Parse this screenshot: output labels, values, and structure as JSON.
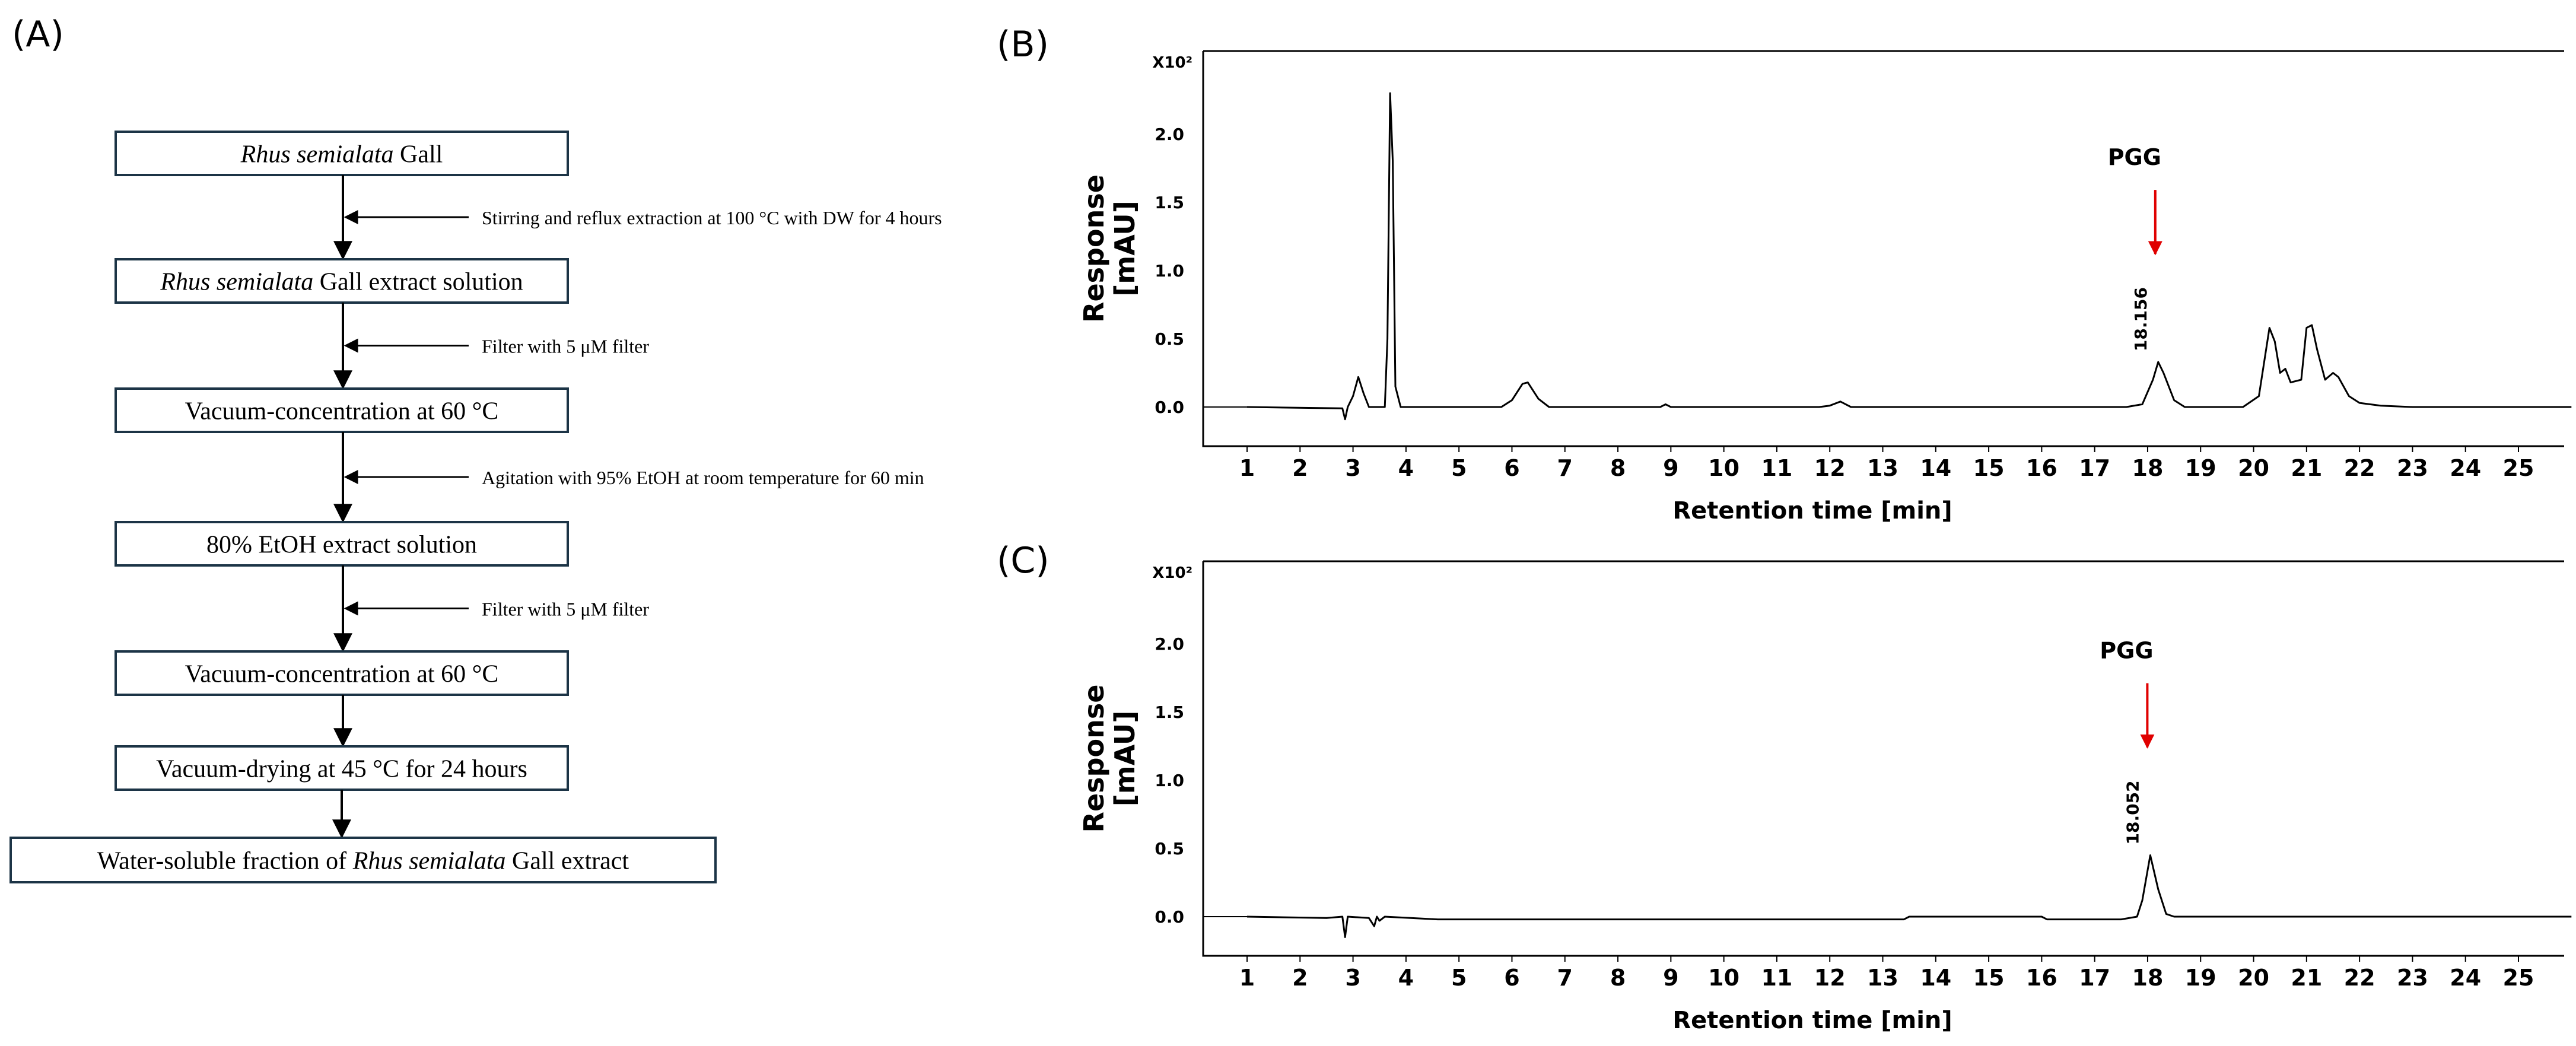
{
  "flowchart": {
    "panel_label": "(A)",
    "steps": [
      {
        "italic": "Rhus semialata",
        "text": " Gall"
      },
      {
        "italic": "Rhus semialata",
        "text": " Gall extract solution"
      },
      {
        "italic": "",
        "text": "Vacuum-concentration at 60 °C"
      },
      {
        "italic": "",
        "text": "80% EtOH extract solution"
      },
      {
        "italic": "",
        "text": "Vacuum-concentration at 60 °C"
      },
      {
        "italic": "",
        "text": "Vacuum-drying at 45 °C for 24 hours"
      },
      {
        "prefix": "Water-soluble fraction of ",
        "italic": "Rhus semialata",
        "text": " Gall extract"
      }
    ],
    "side_inputs": [
      {
        "after_step": 0,
        "text": "Stirring and reflux extraction at 100 °C with DW for 4 hours"
      },
      {
        "after_step": 1,
        "text": "Filter with 5 μM filter"
      },
      {
        "after_step": 2,
        "text": "Agitation with 95% EtOH at room temperature for 60 min"
      },
      {
        "after_step": 3,
        "text": "Filter with 5 μM filter"
      }
    ]
  },
  "chart_data": [
    {
      "panel_label": "(B)",
      "type": "line",
      "xlabel": "Retention time [min]",
      "ylabel_line1": "Response",
      "ylabel_line2": "[mAU]",
      "y_multiplier": "X10²",
      "xlim": [
        0.2,
        26.0
      ],
      "ylim": [
        -0.28,
        2.65
      ],
      "xticks": [
        1,
        2,
        3,
        4,
        5,
        6,
        7,
        8,
        9,
        10,
        11,
        12,
        13,
        14,
        15,
        16,
        17,
        18,
        19,
        20,
        21,
        22,
        23,
        24,
        25
      ],
      "yticks": [
        "0.0",
        "0.5",
        "1.0",
        "1.5",
        "2.0"
      ],
      "series": [
        {
          "color": "#000000",
          "points": [
            [
              1.0,
              0.0
            ],
            [
              2.8,
              -0.01
            ],
            [
              2.85,
              -0.09
            ],
            [
              2.9,
              0.0
            ],
            [
              3.0,
              0.08
            ],
            [
              3.1,
              0.22
            ],
            [
              3.2,
              0.1
            ],
            [
              3.3,
              0.0
            ],
            [
              3.6,
              0.0
            ],
            [
              3.65,
              0.5
            ],
            [
              3.7,
              2.3
            ],
            [
              3.75,
              1.8
            ],
            [
              3.8,
              0.15
            ],
            [
              3.9,
              0.0
            ],
            [
              5.8,
              0.0
            ],
            [
              6.0,
              0.05
            ],
            [
              6.2,
              0.17
            ],
            [
              6.3,
              0.18
            ],
            [
              6.5,
              0.06
            ],
            [
              6.7,
              0.0
            ],
            [
              8.8,
              0.0
            ],
            [
              8.9,
              0.02
            ],
            [
              9.0,
              0.0
            ],
            [
              11.8,
              0.0
            ],
            [
              12.0,
              0.01
            ],
            [
              12.2,
              0.04
            ],
            [
              12.4,
              0.0
            ],
            [
              17.6,
              0.0
            ],
            [
              17.9,
              0.02
            ],
            [
              18.1,
              0.2
            ],
            [
              18.2,
              0.33
            ],
            [
              18.3,
              0.25
            ],
            [
              18.5,
              0.05
            ],
            [
              18.7,
              0.0
            ],
            [
              19.8,
              0.0
            ],
            [
              20.1,
              0.08
            ],
            [
              20.3,
              0.58
            ],
            [
              20.4,
              0.48
            ],
            [
              20.5,
              0.25
            ],
            [
              20.6,
              0.28
            ],
            [
              20.7,
              0.18
            ],
            [
              20.9,
              0.2
            ],
            [
              21.0,
              0.58
            ],
            [
              21.1,
              0.6
            ],
            [
              21.2,
              0.42
            ],
            [
              21.35,
              0.2
            ],
            [
              21.5,
              0.25
            ],
            [
              21.6,
              0.22
            ],
            [
              21.8,
              0.08
            ],
            [
              22.0,
              0.03
            ],
            [
              22.4,
              0.01
            ],
            [
              23.0,
              0.0
            ],
            [
              26.0,
              0.0
            ]
          ]
        }
      ],
      "annotations": [
        {
          "label": "PGG",
          "x": 18.2,
          "arrow_color": "#e00000",
          "peak_label": "18.156",
          "peak_y": 0.33
        }
      ]
    },
    {
      "panel_label": "(C)",
      "type": "line",
      "xlabel": "Retention time [min]",
      "ylabel_line1": "Response",
      "ylabel_line2": "[mAU]",
      "y_multiplier": "X10²",
      "xlim": [
        0.2,
        26.0
      ],
      "ylim": [
        -0.28,
        2.65
      ],
      "xticks": [
        1,
        2,
        3,
        4,
        5,
        6,
        7,
        8,
        9,
        10,
        11,
        12,
        13,
        14,
        15,
        16,
        17,
        18,
        19,
        20,
        21,
        22,
        23,
        24,
        25
      ],
      "yticks": [
        "0.0",
        "0.5",
        "1.0",
        "1.5",
        "2.0"
      ],
      "series": [
        {
          "color": "#000000",
          "points": [
            [
              1.0,
              0.0
            ],
            [
              2.5,
              -0.01
            ],
            [
              2.8,
              0.0
            ],
            [
              2.85,
              -0.15
            ],
            [
              2.9,
              0.0
            ],
            [
              3.3,
              -0.01
            ],
            [
              3.4,
              -0.07
            ],
            [
              3.45,
              0.0
            ],
            [
              3.5,
              -0.03
            ],
            [
              3.6,
              0.0
            ],
            [
              4.6,
              -0.02
            ],
            [
              13.4,
              -0.02
            ],
            [
              13.5,
              0.0
            ],
            [
              16.0,
              0.0
            ],
            [
              16.1,
              -0.02
            ],
            [
              17.5,
              -0.02
            ],
            [
              17.8,
              0.0
            ],
            [
              17.9,
              0.12
            ],
            [
              18.05,
              0.45
            ],
            [
              18.2,
              0.2
            ],
            [
              18.35,
              0.02
            ],
            [
              18.5,
              0.0
            ],
            [
              26.0,
              0.0
            ]
          ]
        }
      ],
      "annotations": [
        {
          "label": "PGG",
          "x": 18.05,
          "arrow_color": "#e00000",
          "peak_label": "18.052",
          "peak_y": 0.45
        }
      ]
    }
  ]
}
